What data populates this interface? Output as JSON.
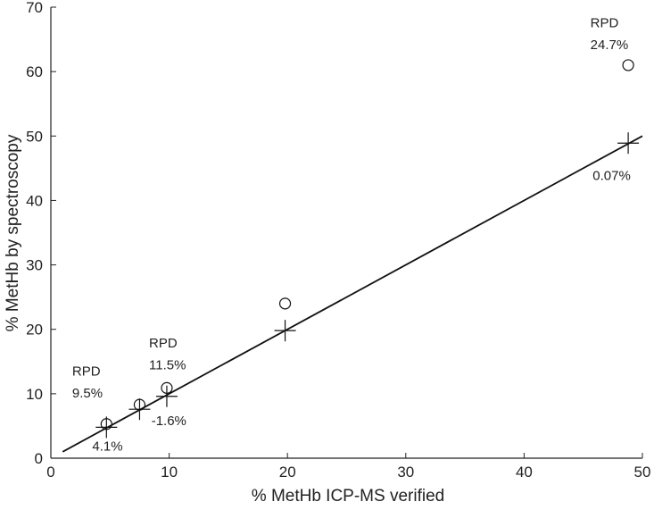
{
  "chart_data": {
    "type": "scatter",
    "title": "",
    "xlabel": "% MetHb ICP-MS verified",
    "ylabel": "% MetHb by spectroscopy",
    "xlim": [
      0,
      50
    ],
    "ylim": [
      0,
      70
    ],
    "xticks": [
      "0",
      "10",
      "20",
      "30",
      "40",
      "50"
    ],
    "yticks": [
      "0",
      "10",
      "20",
      "30",
      "40",
      "50",
      "60",
      "70"
    ],
    "grid": false,
    "legend": "none",
    "series": [
      {
        "marker": "circle",
        "x": [
          4.7,
          7.5,
          9.8,
          19.8,
          48.8
        ],
        "y": [
          5.3,
          8.3,
          10.9,
          24.0,
          61.0
        ]
      },
      {
        "marker": "plus",
        "x": [
          4.7,
          7.5,
          9.8,
          19.8,
          48.8
        ],
        "y": [
          4.8,
          7.6,
          9.6,
          19.8,
          48.9
        ]
      }
    ],
    "fit_line": {
      "x": [
        1,
        50
      ],
      "y": [
        1,
        50
      ]
    },
    "annotations": [
      {
        "text": "RPD",
        "x": 1.8,
        "y": 12.8
      },
      {
        "text": "9.5%",
        "x": 1.8,
        "y": 9.4
      },
      {
        "text": "4.1%",
        "x": 3.5,
        "y": 1.2
      },
      {
        "text": "RPD",
        "x": 8.3,
        "y": 17.2
      },
      {
        "text": "11.5%",
        "x": 8.3,
        "y": 13.8
      },
      {
        "text": "-1.6%",
        "x": 8.5,
        "y": 5.1
      },
      {
        "text": "RPD",
        "x": 45.6,
        "y": 66.9
      },
      {
        "text": "24.7%",
        "x": 45.6,
        "y": 63.5
      },
      {
        "text": "0.07%",
        "x": 45.8,
        "y": 43.2
      }
    ]
  }
}
